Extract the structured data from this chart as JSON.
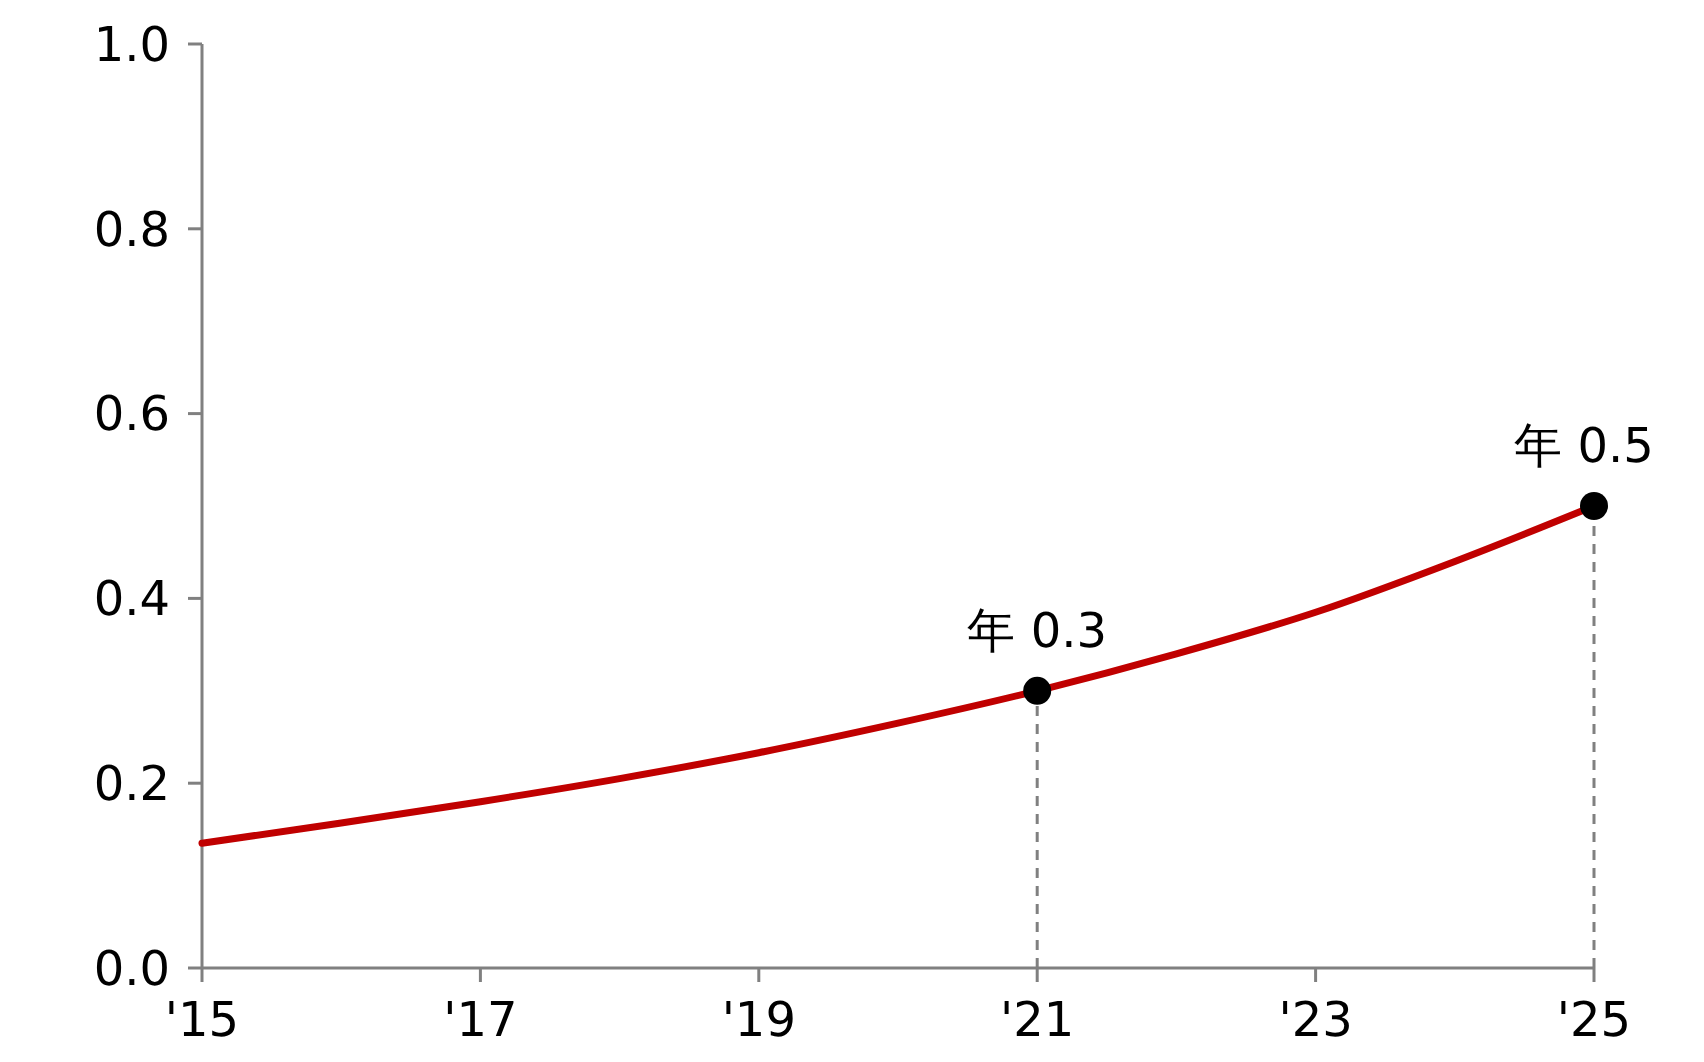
{
  "chart_data": {
    "type": "line",
    "x": [
      2015,
      2016,
      2017,
      2018,
      2019,
      2020,
      2021,
      2022,
      2023,
      2024,
      2025
    ],
    "series": [
      {
        "color": "#c00000",
        "values": [
          0.135,
          0.157,
          0.18,
          0.205,
          0.233,
          0.265,
          0.3,
          0.34,
          0.385,
          0.44,
          0.5
        ],
        "marker": "none"
      },
      {
        "type": "scatter",
        "color": "#000000",
        "x": [
          2021,
          2025
        ],
        "values": [
          0.3,
          0.5
        ],
        "marker": "circle"
      }
    ],
    "xlim": [
      2015,
      2025
    ],
    "xticks": [
      {
        "value": 2015,
        "label": "'15"
      },
      {
        "value": 2017,
        "label": "'17"
      },
      {
        "value": 2019,
        "label": "'19"
      },
      {
        "value": 2021,
        "label": "'21"
      },
      {
        "value": 2023,
        "label": "'23"
      },
      {
        "value": 2025,
        "label": "'25"
      }
    ],
    "ylim": [
      0,
      1
    ],
    "yticks": [
      {
        "value": 0,
        "label": "0.0"
      },
      {
        "value": 0.2,
        "label": "0.2"
      },
      {
        "value": 0.4,
        "label": "0.4"
      },
      {
        "value": 0.6,
        "label": "0.6"
      },
      {
        "value": 0.8,
        "label": "0.8"
      },
      {
        "value": 1,
        "label": "1.0"
      }
    ],
    "ref_lines": [
      {
        "axis": "x",
        "value": 2021,
        "color": "#808080",
        "line_style": "dashed"
      },
      {
        "axis": "x",
        "value": 2025,
        "color": "#808080",
        "line_style": "dashed"
      }
    ],
    "annotations": [
      {
        "text": "年 0.3",
        "x": 2021,
        "y": 0.3
      },
      {
        "text": "年 0.5",
        "x": 2025,
        "y": 0.5
      }
    ],
    "grid": false
  }
}
